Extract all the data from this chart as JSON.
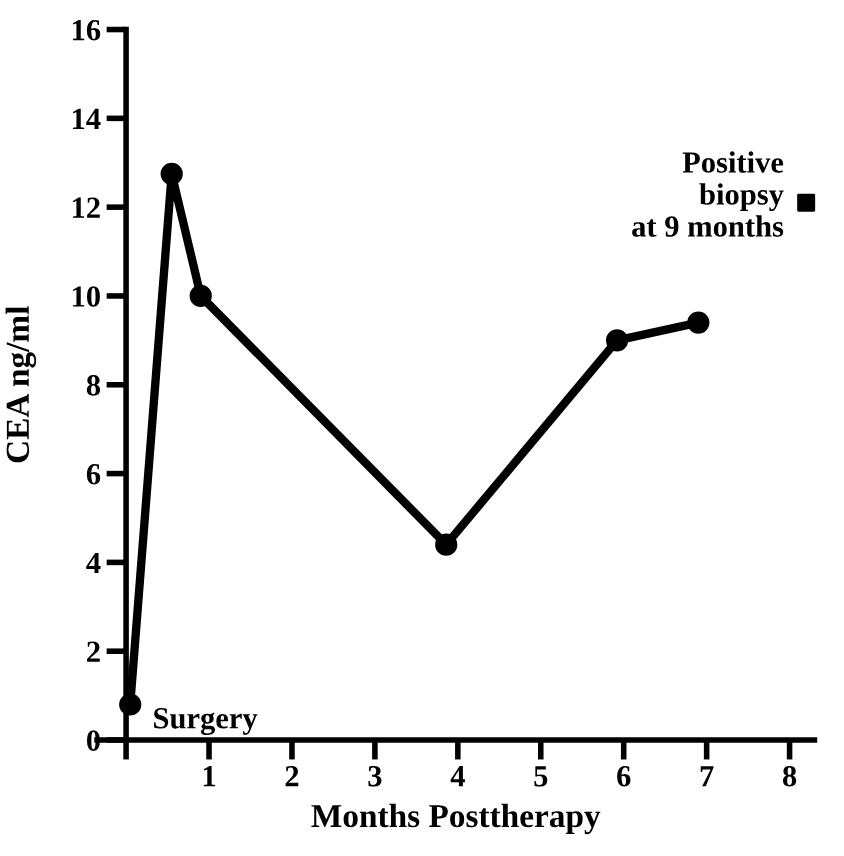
{
  "chart_data": {
    "type": "line",
    "xlabel": "Months Posttherapy",
    "ylabel": "CEA ng/ml",
    "xlim": [
      -0.35,
      8.3
    ],
    "xticks": [
      {
        "value": 0,
        "label": null
      },
      1,
      2,
      3,
      4,
      5,
      6,
      7,
      8
    ],
    "ylim": [
      0,
      16
    ],
    "yticks": [
      0,
      2,
      4,
      6,
      8,
      10,
      12,
      14,
      16
    ],
    "grid": false,
    "legend": false,
    "series": [
      {
        "color": "#000000",
        "marker": "circle",
        "line_style": "solid",
        "x": [
          0.05,
          0.55,
          0.9,
          3.86,
          5.92,
          6.9
        ],
        "values": [
          0.8,
          12.75,
          10,
          4.4,
          9,
          9.4
        ]
      },
      {
        "type": "scatter",
        "color": "#000000",
        "marker": "square",
        "x": [
          8.2
        ],
        "values": [
          12.1
        ]
      }
    ],
    "annotations": [
      {
        "text": "Surgery",
        "x": 0.05,
        "y": 0.8
      },
      {
        "text": "Positive\nbiopsy\n   at 9 months",
        "x": 8.2,
        "y": 12.1
      }
    ]
  }
}
